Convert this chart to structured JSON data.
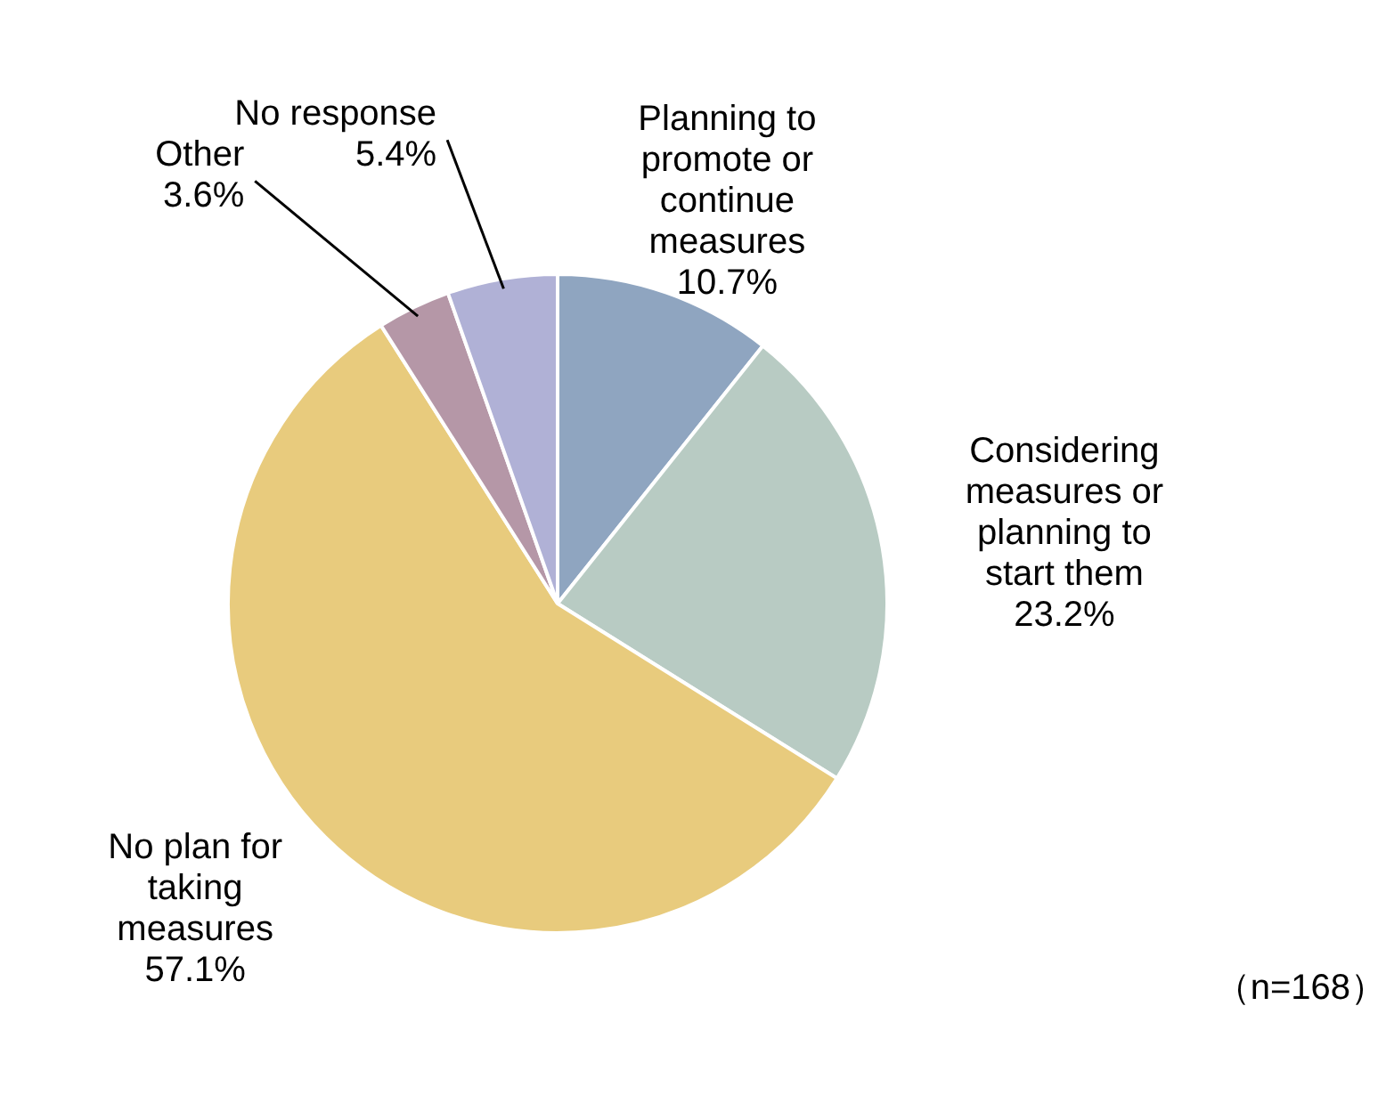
{
  "chart_data": {
    "type": "pie",
    "categories": [
      "Planning to promote or continue measures",
      "Considering measures or planning to start them",
      "No plan for taking measures",
      "Other",
      "No response"
    ],
    "values": [
      10.7,
      23.2,
      57.1,
      3.6,
      5.4
    ],
    "colors": [
      "#8fa5c0",
      "#b8cbc3",
      "#e8cb7d",
      "#b597a7",
      "#b0b1d6"
    ],
    "value_labels": [
      "10.7%",
      "23.2%",
      "57.1%",
      "3.6%",
      "5.4%"
    ],
    "annotations": [
      "（n=168）"
    ]
  }
}
